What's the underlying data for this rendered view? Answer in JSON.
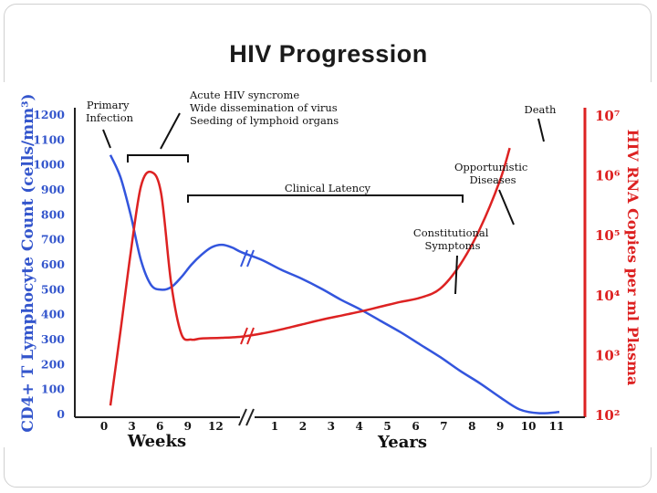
{
  "title": "HIV Progression",
  "chart_data": {
    "type": "line",
    "left_axis": {
      "label": "CD4+ T Lymphocyte Count (cells/mm³)",
      "ticks": [
        "0",
        "100",
        "200",
        "300",
        "400",
        "500",
        "600",
        "700",
        "800",
        "900",
        "1000",
        "1100",
        "1200"
      ],
      "range": [
        0,
        1200
      ],
      "color": "#3355cc"
    },
    "right_axis": {
      "label": "HIV RNA Copies per ml Plasma",
      "ticks": [
        "10²",
        "10³",
        "10⁴",
        "10⁵",
        "10⁶",
        "10⁷"
      ],
      "log_range": [
        2,
        7
      ],
      "color": "#dd2222"
    },
    "x_axis": {
      "weeks_label": "Weeks",
      "years_label": "Years",
      "week_ticks": [
        "0",
        "3",
        "6",
        "9",
        "12"
      ],
      "year_ticks": [
        "1",
        "2",
        "3",
        "4",
        "5",
        "6",
        "7",
        "8",
        "9",
        "10",
        "11"
      ]
    },
    "series": [
      {
        "name": "CD4",
        "color": "#3355dd",
        "points": [
          [
            1,
            1040
          ],
          [
            2,
            950
          ],
          [
            3,
            800
          ],
          [
            4,
            620
          ],
          [
            5,
            520
          ],
          [
            6,
            500
          ],
          [
            7,
            510
          ],
          [
            8,
            550
          ],
          [
            9,
            600
          ],
          [
            10,
            640
          ],
          [
            11,
            670
          ],
          [
            12,
            680
          ],
          [
            13,
            670
          ],
          [
            14,
            650
          ],
          [
            16,
            620
          ],
          [
            18,
            580
          ],
          [
            20,
            545
          ],
          [
            22,
            505
          ],
          [
            24,
            460
          ],
          [
            26,
            420
          ],
          [
            28,
            375
          ],
          [
            30,
            330
          ],
          [
            32,
            280
          ],
          [
            34,
            230
          ],
          [
            36,
            175
          ],
          [
            38,
            125
          ],
          [
            40,
            70
          ],
          [
            42,
            20
          ],
          [
            44,
            5
          ],
          [
            46,
            10
          ]
        ]
      },
      {
        "name": "HIV RNA",
        "color": "#dd2222",
        "points": [
          [
            1,
            2.15
          ],
          [
            2,
            3.4
          ],
          [
            3,
            4.7
          ],
          [
            4,
            5.8
          ],
          [
            5,
            6.05
          ],
          [
            6,
            5.7
          ],
          [
            7,
            4.2
          ],
          [
            8,
            3.35
          ],
          [
            9,
            3.25
          ],
          [
            10,
            3.27
          ],
          [
            12,
            3.28
          ],
          [
            14,
            3.3
          ],
          [
            16,
            3.35
          ],
          [
            18,
            3.42
          ],
          [
            20,
            3.5
          ],
          [
            22,
            3.58
          ],
          [
            24,
            3.65
          ],
          [
            26,
            3.72
          ],
          [
            28,
            3.8
          ],
          [
            30,
            3.88
          ],
          [
            32,
            3.95
          ],
          [
            34,
            4.1
          ],
          [
            36,
            4.5
          ],
          [
            38,
            5.1
          ],
          [
            40,
            5.9
          ],
          [
            41,
            6.45
          ]
        ]
      }
    ],
    "annotations": [
      {
        "text": "Primary\nInfection",
        "name": "primary-infection"
      },
      {
        "text": "Acute HIV syncrome\nWide dissemination of virus\nSeeding of lymphoid organs",
        "name": "acute-hiv"
      },
      {
        "text": "Clinical Latency",
        "name": "clinical-latency"
      },
      {
        "text": "Constitutional\nSymptoms",
        "name": "constitutional-symptoms"
      },
      {
        "text": "Opportunistic\nDiseases",
        "name": "opportunistic-diseases"
      },
      {
        "text": "Death",
        "name": "death"
      }
    ]
  }
}
